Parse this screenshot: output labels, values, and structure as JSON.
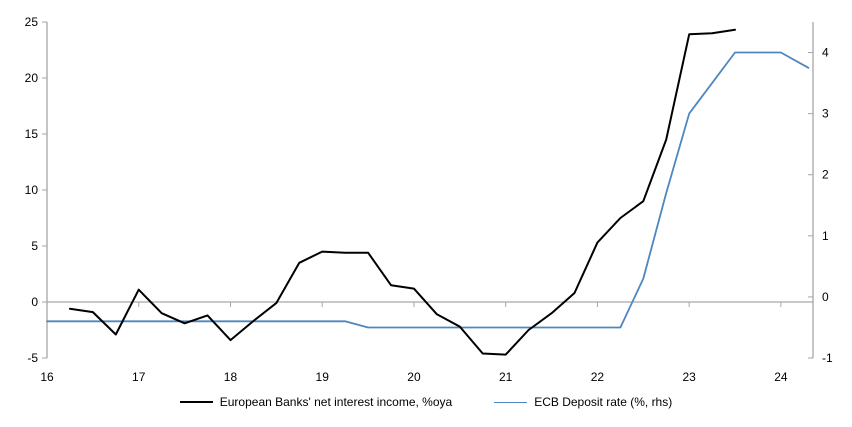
{
  "chart_data": {
    "type": "line",
    "title": "",
    "legend_position": "bottom",
    "grid": "zero-line-only",
    "x_axis": {
      "range": [
        16,
        24.35
      ],
      "ticks": [
        16,
        17,
        18,
        19,
        20,
        21,
        22,
        23,
        24
      ]
    },
    "left_axis": {
      "range": [
        -5,
        25
      ],
      "ticks": [
        -5,
        0,
        5,
        10,
        15,
        20,
        25
      ]
    },
    "right_axis": {
      "range": [
        -1,
        4.5
      ],
      "ticks": [
        -1,
        0,
        1,
        2,
        3,
        4
      ]
    },
    "series": [
      {
        "name": "European Banks' net interest income, %oya",
        "axis": "left",
        "color": "#000000",
        "width": 2,
        "x": [
          16.25,
          16.5,
          16.75,
          17,
          17.25,
          17.5,
          17.75,
          18,
          18.25,
          18.5,
          18.75,
          19,
          19.25,
          19.5,
          19.75,
          20,
          20.25,
          20.5,
          20.75,
          21,
          21.25,
          21.5,
          21.75,
          22,
          22.25,
          22.5,
          22.75,
          23,
          23.25,
          23.5
        ],
        "values": [
          -0.6,
          -0.9,
          -2.9,
          1.1,
          -1.0,
          -1.9,
          -1.2,
          -3.4,
          -1.7,
          -0.1,
          3.5,
          4.5,
          4.4,
          4.4,
          1.5,
          1.2,
          -1.1,
          -2.2,
          -4.6,
          -4.7,
          -2.5,
          -1.0,
          0.8,
          5.3,
          7.5,
          9.0,
          14.5,
          23.9,
          24.0,
          24.3
        ]
      },
      {
        "name": "ECB Deposit rate (%, rhs)",
        "axis": "right",
        "color": "#4e86c0",
        "width": 1.8,
        "x": [
          16,
          16.25,
          16.5,
          16.75,
          17,
          17.25,
          17.5,
          17.75,
          18,
          18.25,
          18.5,
          18.75,
          19,
          19.25,
          19.5,
          19.75,
          20,
          20.25,
          20.5,
          20.75,
          21,
          21.25,
          21.5,
          21.75,
          22,
          22.25,
          22.5,
          22.75,
          23,
          23.25,
          23.5,
          23.75,
          24,
          24.3
        ],
        "values": [
          -0.4,
          -0.4,
          -0.4,
          -0.4,
          -0.4,
          -0.4,
          -0.4,
          -0.4,
          -0.4,
          -0.4,
          -0.4,
          -0.4,
          -0.4,
          -0.4,
          -0.5,
          -0.5,
          -0.5,
          -0.5,
          -0.5,
          -0.5,
          -0.5,
          -0.5,
          -0.5,
          -0.5,
          -0.5,
          -0.5,
          0.3,
          1.7,
          3.0,
          3.5,
          4.0,
          4.0,
          4.0,
          3.75
        ]
      }
    ]
  },
  "colors": {
    "axis": "#a6a6a6",
    "zero_line": "#a6a6a6",
    "background": "#ffffff",
    "series_black": "#000000",
    "series_blue": "#4e86c0"
  }
}
